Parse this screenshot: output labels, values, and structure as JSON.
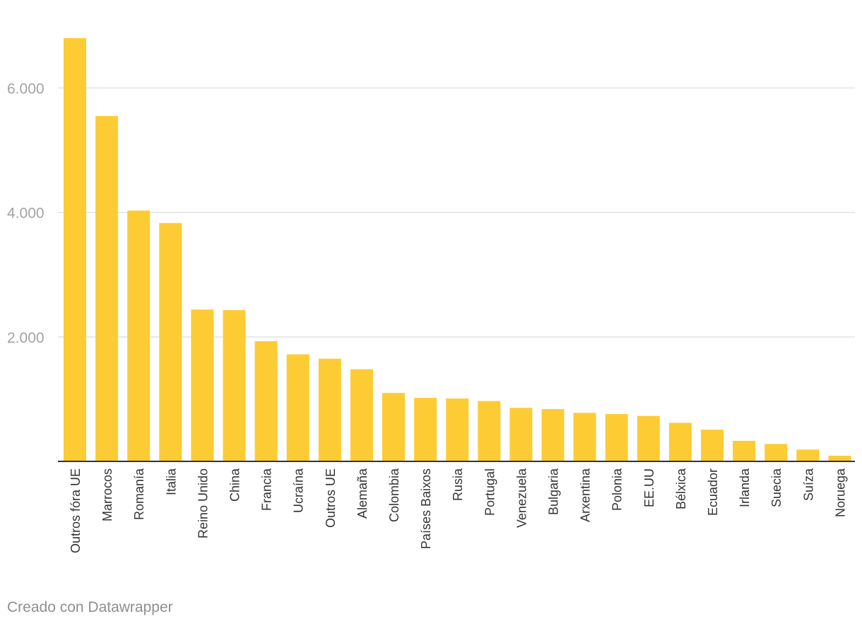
{
  "chart_data": {
    "type": "bar",
    "title": "",
    "xlabel": "",
    "ylabel": "",
    "ylim": [
      0,
      6900
    ],
    "yticks": [
      2000,
      4000,
      6000
    ],
    "ytick_labels": [
      "2.000",
      "4.000",
      "6.000"
    ],
    "grid": true,
    "bar_color": "#fdcc34",
    "categories": [
      "Outros fóra UE",
      "Marrocos",
      "Romanía",
      "Italia",
      "Reino Unido",
      "China",
      "Francia",
      "Ucraína",
      "Outros UE",
      "Alemaña",
      "Colombia",
      "Países Baixos",
      "Rusia",
      "Portugal",
      "Venezuela",
      "Bulgaria",
      "Arxentina",
      "Polonia",
      "EE.UU",
      "Bélxica",
      "Ecuador",
      "Irlanda",
      "Suecia",
      "Suíza",
      "Noruega"
    ],
    "values": [
      6800,
      5550,
      4030,
      3830,
      2440,
      2430,
      1930,
      1720,
      1650,
      1480,
      1100,
      1020,
      1010,
      970,
      860,
      840,
      780,
      760,
      730,
      620,
      510,
      330,
      280,
      190,
      90
    ]
  },
  "footer": {
    "credit": "Creado con Datawrapper"
  }
}
